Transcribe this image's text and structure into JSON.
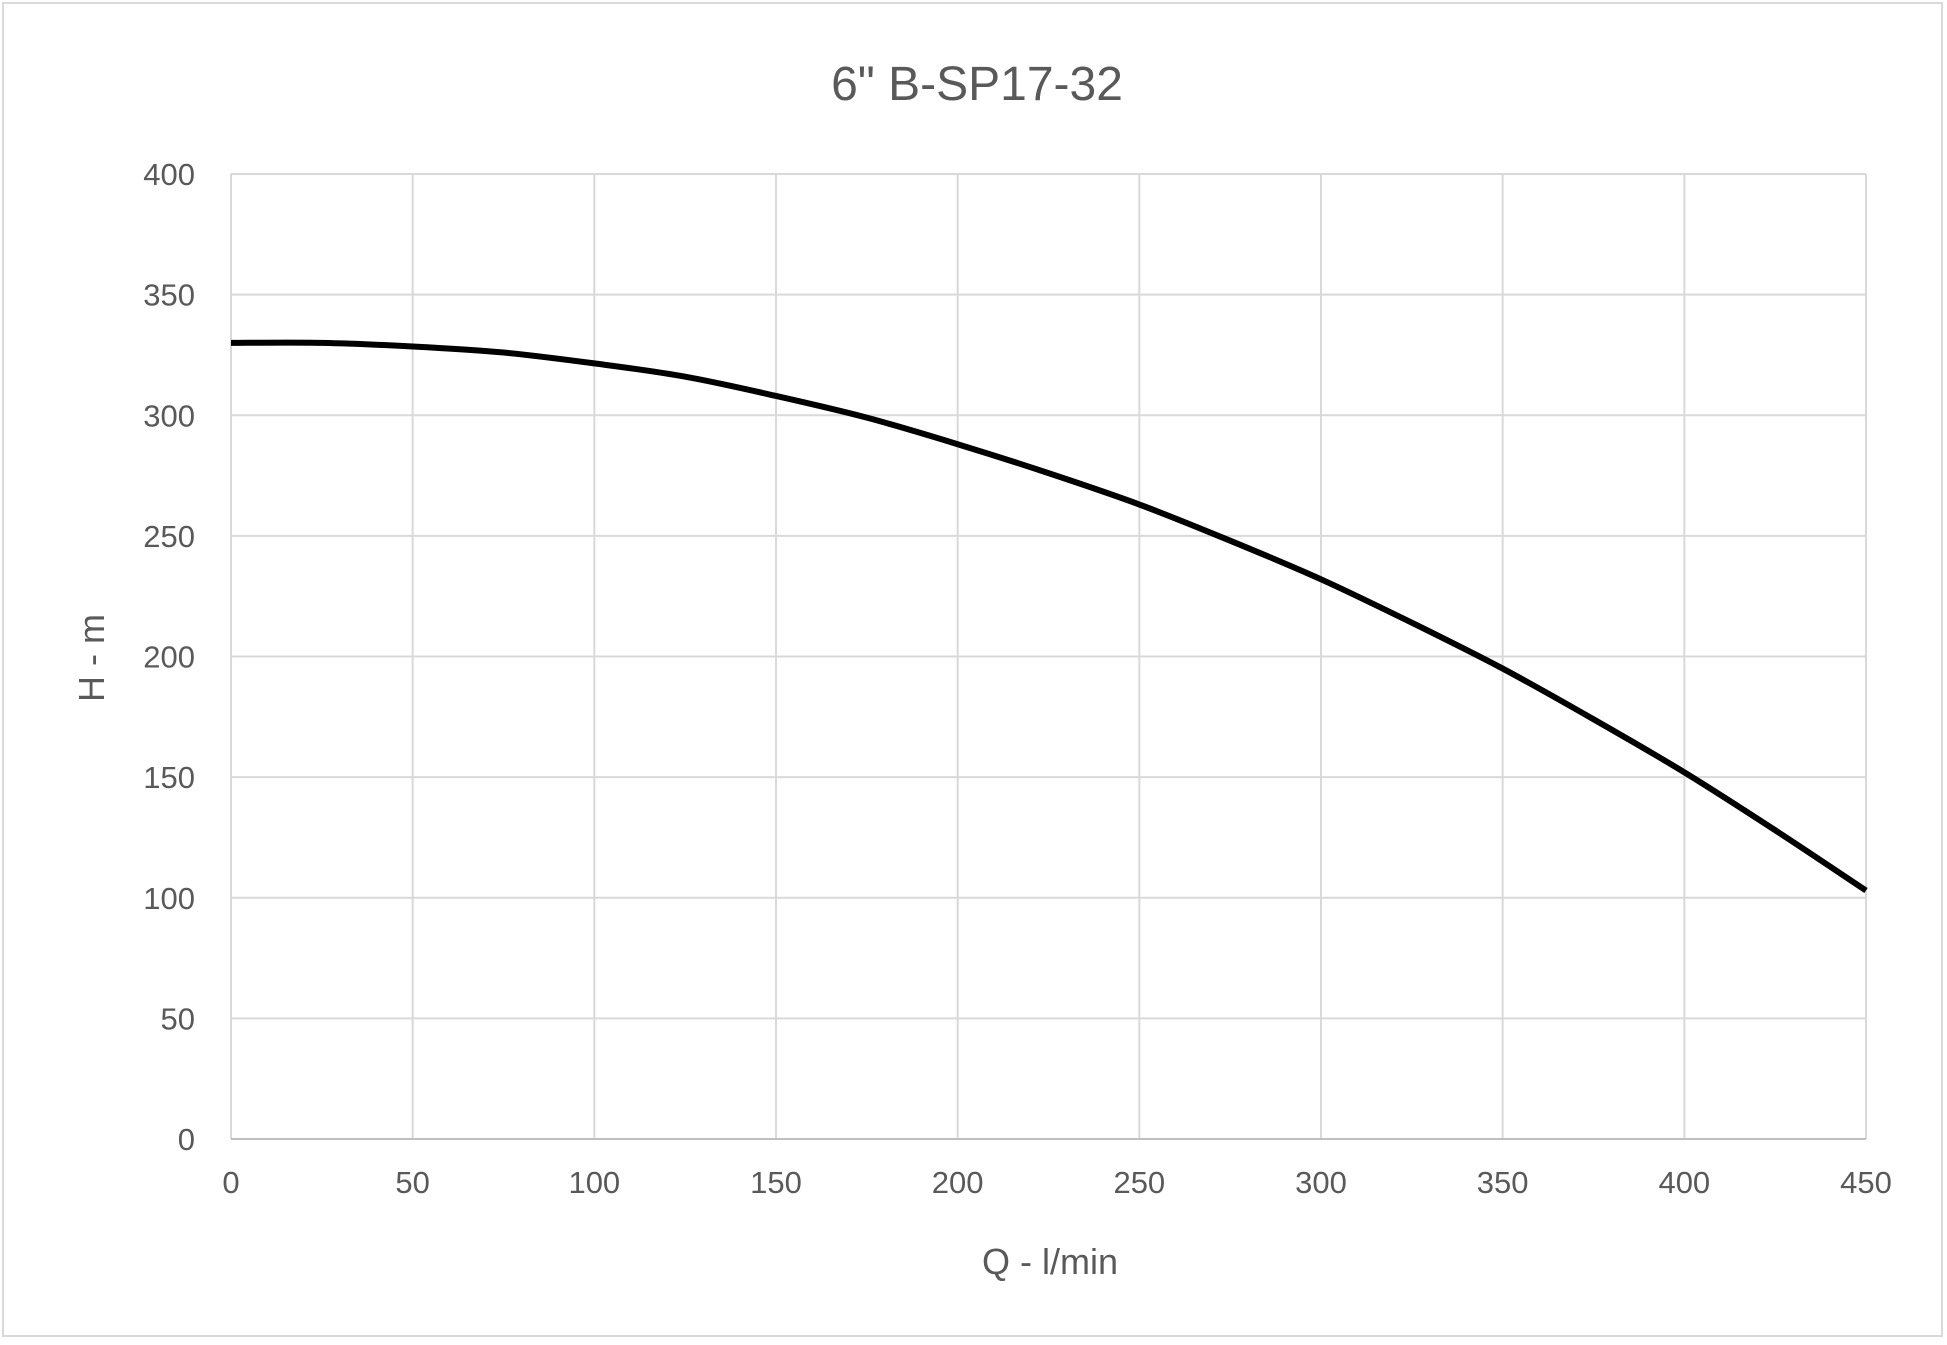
{
  "chart_data": {
    "type": "line",
    "title": "6\" B-SP17-32",
    "xlabel": "Q - l/min",
    "ylabel": "H - m",
    "xlim": [
      0,
      450
    ],
    "ylim": [
      0,
      400
    ],
    "x_ticks": [
      "0",
      "50",
      "100",
      "150",
      "200",
      "250",
      "300",
      "350",
      "400",
      "450"
    ],
    "y_ticks": [
      "0",
      "50",
      "100",
      "150",
      "200",
      "250",
      "300",
      "350",
      "400"
    ],
    "grid": true,
    "legend": "none",
    "series": [
      {
        "color": "#000000",
        "x": [
          0,
          25,
          50,
          75,
          100,
          125,
          150,
          175,
          200,
          225,
          250,
          275,
          300,
          325,
          350,
          375,
          400,
          425,
          450
        ],
        "y": [
          330,
          330,
          328.5,
          326,
          321.5,
          316,
          308,
          299,
          288,
          276,
          263,
          248,
          232,
          214,
          195,
          174,
          152,
          128,
          103
        ]
      }
    ]
  }
}
